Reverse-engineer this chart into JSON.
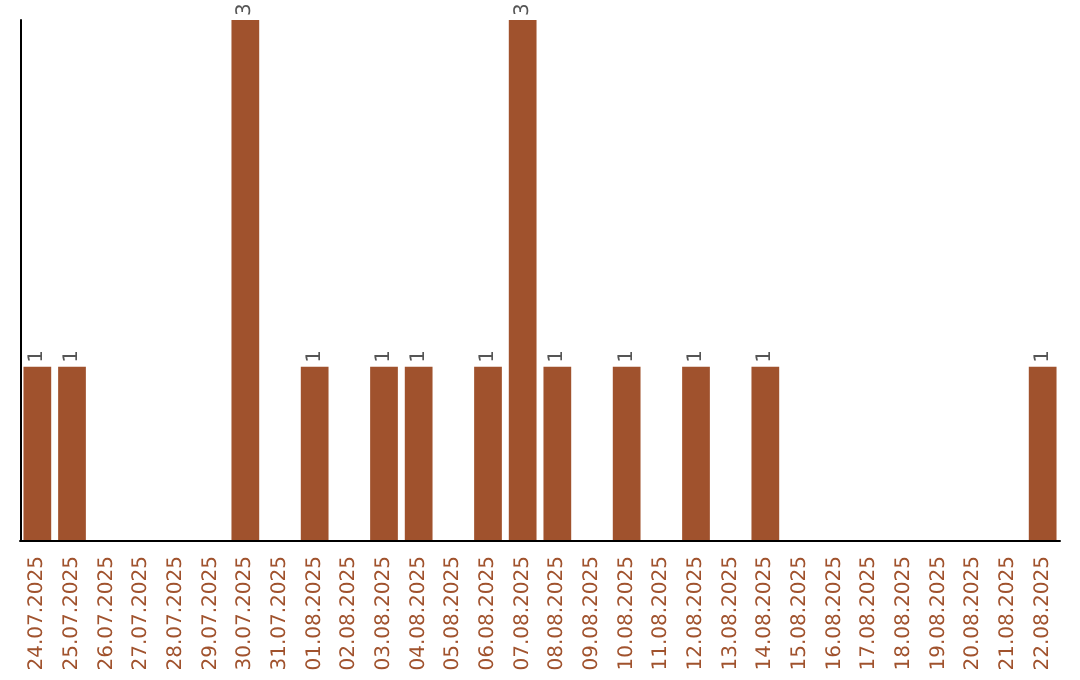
{
  "chart_data": {
    "type": "bar",
    "categories": [
      "24.07.2025",
      "25.07.2025",
      "26.07.2025",
      "27.07.2025",
      "28.07.2025",
      "29.07.2025",
      "30.07.2025",
      "31.07.2025",
      "01.08.2025",
      "02.08.2025",
      "03.08.2025",
      "04.08.2025",
      "05.08.2025",
      "06.08.2025",
      "07.08.2025",
      "08.08.2025",
      "09.08.2025",
      "10.08.2025",
      "11.08.2025",
      "12.08.2025",
      "13.08.2025",
      "14.08.2025",
      "15.08.2025",
      "16.08.2025",
      "17.08.2025",
      "18.08.2025",
      "19.08.2025",
      "20.08.2025",
      "21.08.2025",
      "22.08.2025"
    ],
    "values": [
      1,
      1,
      0,
      0,
      0,
      0,
      3,
      0,
      1,
      0,
      1,
      1,
      0,
      1,
      3,
      1,
      0,
      1,
      0,
      1,
      0,
      1,
      0,
      0,
      0,
      0,
      0,
      0,
      0,
      1
    ],
    "value_labels": [
      "1",
      "1",
      null,
      null,
      null,
      null,
      "3",
      null,
      "1",
      null,
      "1",
      "1",
      null,
      "1",
      "3",
      "1",
      null,
      "1",
      null,
      "1",
      null,
      "1",
      null,
      null,
      null,
      null,
      null,
      null,
      null,
      "1"
    ],
    "color": "#a0522d",
    "tick_labels": "x"
  }
}
